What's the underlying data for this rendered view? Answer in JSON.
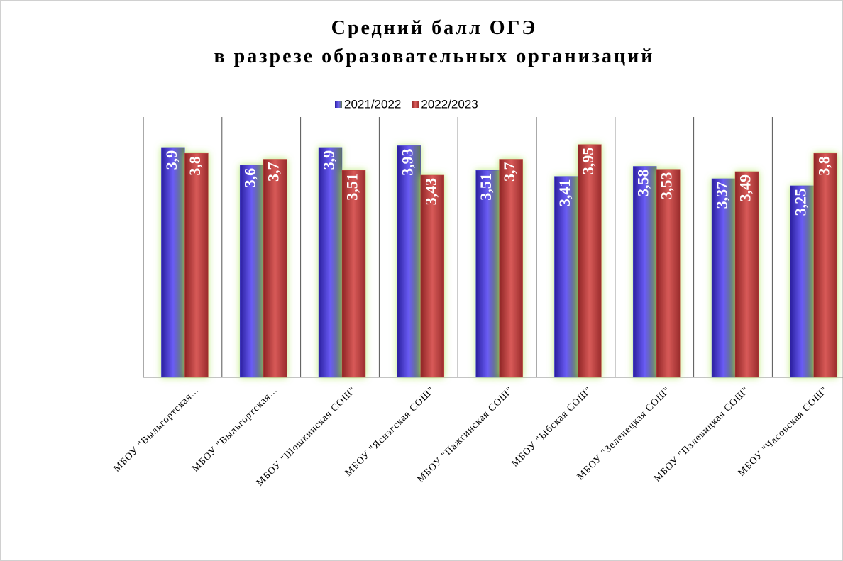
{
  "chart_data": {
    "type": "bar",
    "title": [
      "Средний балл ОГЭ",
      "в разрезе образовательных организаций"
    ],
    "categories": [
      "МБОУ \"Выльгортская...",
      "МБОУ \"Выльгортская...",
      "МБОУ \"Шошкинская СОШ\"",
      "МБОУ \"Яснэгская СОШ\"",
      "МБОУ \"Пажгинская СОШ\"",
      "МБОУ \"Ыбская СОШ\"",
      "МБОУ \"Зеленецкая СОШ\"",
      "МБОУ \"Палевицкая СОШ\"",
      "МБОУ \"Часовская СОШ\""
    ],
    "series": [
      {
        "name": "2021/2022",
        "color": "#4b3fd6",
        "values": [
          3.9,
          3.6,
          3.9,
          3.93,
          3.51,
          3.41,
          3.58,
          3.37,
          3.25
        ],
        "value_labels": [
          "3,9",
          "3,6",
          "3,9",
          "3,93",
          "3,51",
          "3,41",
          "3,58",
          "3,37",
          "3,25"
        ]
      },
      {
        "name": "2022/2023",
        "color": "#c0403f",
        "values": [
          3.8,
          3.7,
          3.51,
          3.43,
          3.7,
          3.95,
          3.53,
          3.49,
          3.8
        ],
        "value_labels": [
          "3,8",
          "3,7",
          "3,51",
          "3,43",
          "3,7",
          "3,95",
          "3,53",
          "3,49",
          "3,8"
        ]
      }
    ],
    "ylim": [
      0,
      4.5
    ]
  }
}
